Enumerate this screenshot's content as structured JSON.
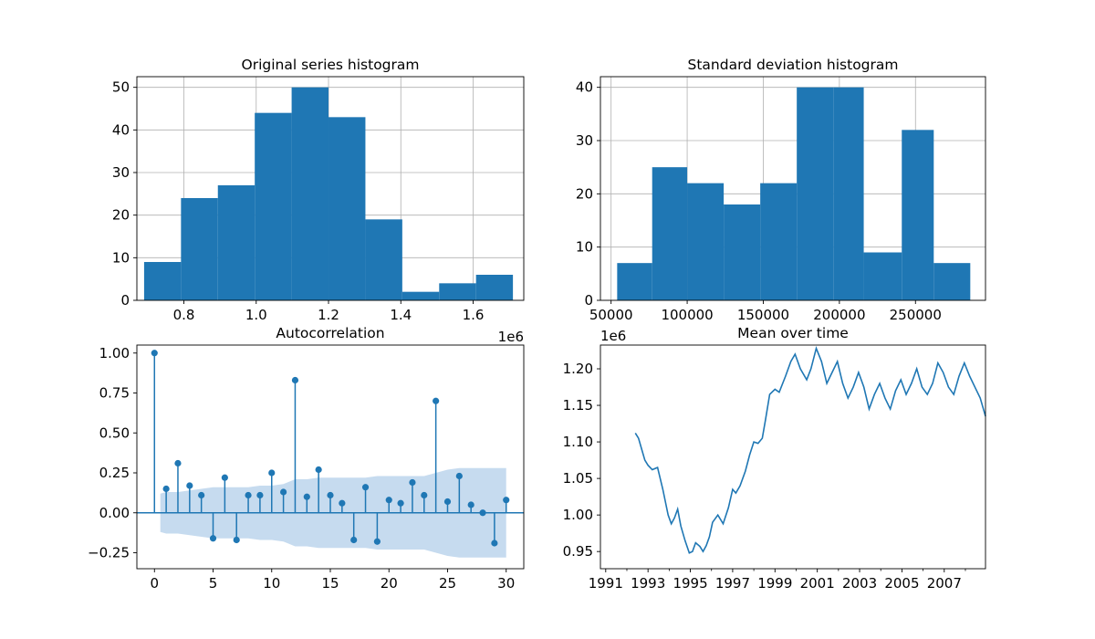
{
  "chart_data": [
    {
      "type": "bar",
      "title": "Original series histogram",
      "xlabel": "",
      "ylabel": "",
      "xlim": [
        670000,
        1740000
      ],
      "ylim": [
        0,
        52.5
      ],
      "x_offset_label": "1e6",
      "xticks": [
        {
          "v": 800000,
          "label": "0.8"
        },
        {
          "v": 1000000,
          "label": "1.0"
        },
        {
          "v": 1200000,
          "label": "1.2"
        },
        {
          "v": 1400000,
          "label": "1.4"
        },
        {
          "v": 1600000,
          "label": "1.6"
        }
      ],
      "yticks": [
        0,
        10,
        20,
        30,
        40,
        50
      ],
      "grid": true,
      "bin_edges": [
        690000,
        792000,
        894000,
        996000,
        1098000,
        1200000,
        1302000,
        1404000,
        1506000,
        1608000,
        1710000
      ],
      "values": [
        9,
        24,
        27,
        44,
        50,
        43,
        19,
        2,
        4,
        6
      ],
      "color": "#1f77b4"
    },
    {
      "type": "bar",
      "title": "Standard deviation histogram",
      "xlabel": "",
      "ylabel": "",
      "xlim": [
        43000,
        296000
      ],
      "ylim": [
        0,
        42
      ],
      "xticks": [
        {
          "v": 50000,
          "label": "50000"
        },
        {
          "v": 100000,
          "label": "100000"
        },
        {
          "v": 150000,
          "label": "150000"
        },
        {
          "v": 200000,
          "label": "200000"
        },
        {
          "v": 250000,
          "label": "250000"
        }
      ],
      "yticks": [
        0,
        10,
        20,
        30,
        40
      ],
      "grid": true,
      "bin_edges": [
        54000,
        77000,
        100000,
        124000,
        148000,
        172000,
        196000,
        216000,
        241000,
        262000,
        286000
      ],
      "values": [
        7,
        25,
        22,
        18,
        22,
        40,
        40,
        9,
        32,
        7
      ],
      "color": "#1f77b4"
    },
    {
      "type": "scatter",
      "subtype": "stem",
      "title": "Autocorrelation",
      "xlabel": "",
      "ylabel": "",
      "xlim": [
        -1.5,
        31.5
      ],
      "ylim": [
        -0.35,
        1.05
      ],
      "xticks": [
        0,
        5,
        10,
        15,
        20,
        25,
        30
      ],
      "yticks": [
        {
          "v": 1.0,
          "label": "1.00"
        },
        {
          "v": 0.75,
          "label": "0.75"
        },
        {
          "v": 0.5,
          "label": "0.50"
        },
        {
          "v": 0.25,
          "label": "0.25"
        },
        {
          "v": 0.0,
          "label": "0.00"
        },
        {
          "v": -0.25,
          "label": "−0.25"
        }
      ],
      "grid": false,
      "x": [
        0,
        1,
        2,
        3,
        4,
        5,
        6,
        7,
        8,
        9,
        10,
        11,
        12,
        13,
        14,
        15,
        16,
        17,
        18,
        19,
        20,
        21,
        22,
        23,
        24,
        25,
        26,
        27,
        28,
        29,
        30
      ],
      "values": [
        1.0,
        0.15,
        0.31,
        0.17,
        0.11,
        -0.16,
        0.22,
        -0.17,
        0.11,
        0.11,
        0.25,
        0.13,
        0.83,
        0.1,
        0.27,
        0.11,
        0.06,
        -0.17,
        0.16,
        -0.18,
        0.08,
        0.06,
        0.19,
        0.11,
        0.7,
        0.07,
        0.23,
        0.05,
        0.0,
        -0.19,
        0.08
      ],
      "confidence_band": [
        0.12,
        0.13,
        0.13,
        0.14,
        0.15,
        0.16,
        0.16,
        0.16,
        0.16,
        0.17,
        0.17,
        0.18,
        0.21,
        0.21,
        0.22,
        0.22,
        0.22,
        0.22,
        0.22,
        0.23,
        0.23,
        0.23,
        0.23,
        0.23,
        0.25,
        0.27,
        0.28,
        0.28,
        0.28,
        0.28,
        0.28
      ],
      "color": "#1f77b4",
      "band_color": "#c6dbef"
    },
    {
      "type": "line",
      "title": "Mean over time",
      "xlabel": "",
      "ylabel": "",
      "xlim": [
        1990.75,
        2008.95
      ],
      "ylim": [
        0.9265,
        1.2325
      ],
      "y_offset_label": "1e6",
      "xticks": [
        {
          "v": 1991,
          "label": "1991"
        },
        {
          "v": 1993,
          "label": "1993"
        },
        {
          "v": 1995,
          "label": "1995"
        },
        {
          "v": 1997,
          "label": "1997"
        },
        {
          "v": 1999,
          "label": "1999"
        },
        {
          "v": 2001,
          "label": "2001"
        },
        {
          "v": 2003,
          "label": "2003"
        },
        {
          "v": 2005,
          "label": "2005"
        },
        {
          "v": 2007,
          "label": "2007"
        }
      ],
      "minor_xticks": [
        1992,
        1994,
        1996,
        1998,
        2000,
        2002,
        2004,
        2006,
        2008
      ],
      "yticks": [
        {
          "v": 0.95,
          "label": "0.95"
        },
        {
          "v": 1.0,
          "label": "1.00"
        },
        {
          "v": 1.05,
          "label": "1.05"
        },
        {
          "v": 1.1,
          "label": "1.10"
        },
        {
          "v": 1.15,
          "label": "1.15"
        },
        {
          "v": 1.2,
          "label": "1.20"
        }
      ],
      "grid": false,
      "x": [
        1992.4,
        1992.55,
        1992.7,
        1992.85,
        1993.0,
        1993.2,
        1993.45,
        1993.7,
        1993.95,
        1994.1,
        1994.25,
        1994.4,
        1994.55,
        1994.75,
        1994.95,
        1995.1,
        1995.25,
        1995.45,
        1995.6,
        1995.75,
        1995.9,
        1996.05,
        1996.3,
        1996.55,
        1996.8,
        1997.0,
        1997.15,
        1997.35,
        1997.6,
        1997.8,
        1998.0,
        1998.2,
        1998.4,
        1998.55,
        1998.75,
        1999.0,
        1999.2,
        1999.5,
        1999.75,
        1999.95,
        2000.2,
        2000.5,
        2000.7,
        2000.95,
        2001.2,
        2001.45,
        2001.7,
        2001.95,
        2002.2,
        2002.45,
        2002.7,
        2002.95,
        2003.2,
        2003.45,
        2003.7,
        2003.95,
        2004.2,
        2004.45,
        2004.7,
        2004.95,
        2005.2,
        2005.45,
        2005.7,
        2005.95,
        2006.2,
        2006.45,
        2006.7,
        2006.95,
        2007.2,
        2007.45,
        2007.7,
        2007.95,
        2008.2,
        2008.45,
        2008.7,
        2008.95
      ],
      "values": [
        1.112,
        1.105,
        1.09,
        1.075,
        1.068,
        1.062,
        1.065,
        1.035,
        1.0,
        0.988,
        0.996,
        1.008,
        0.985,
        0.965,
        0.948,
        0.95,
        0.962,
        0.957,
        0.95,
        0.958,
        0.97,
        0.99,
        1.0,
        0.988,
        1.01,
        1.035,
        1.03,
        1.04,
        1.06,
        1.082,
        1.1,
        1.098,
        1.105,
        1.13,
        1.165,
        1.172,
        1.168,
        1.19,
        1.21,
        1.22,
        1.2,
        1.185,
        1.2,
        1.228,
        1.21,
        1.18,
        1.195,
        1.21,
        1.18,
        1.16,
        1.175,
        1.195,
        1.175,
        1.145,
        1.165,
        1.18,
        1.16,
        1.145,
        1.17,
        1.185,
        1.165,
        1.18,
        1.2,
        1.175,
        1.165,
        1.18,
        1.208,
        1.195,
        1.175,
        1.165,
        1.19,
        1.208,
        1.19,
        1.175,
        1.16,
        1.135
      ],
      "color": "#1f77b4"
    }
  ]
}
